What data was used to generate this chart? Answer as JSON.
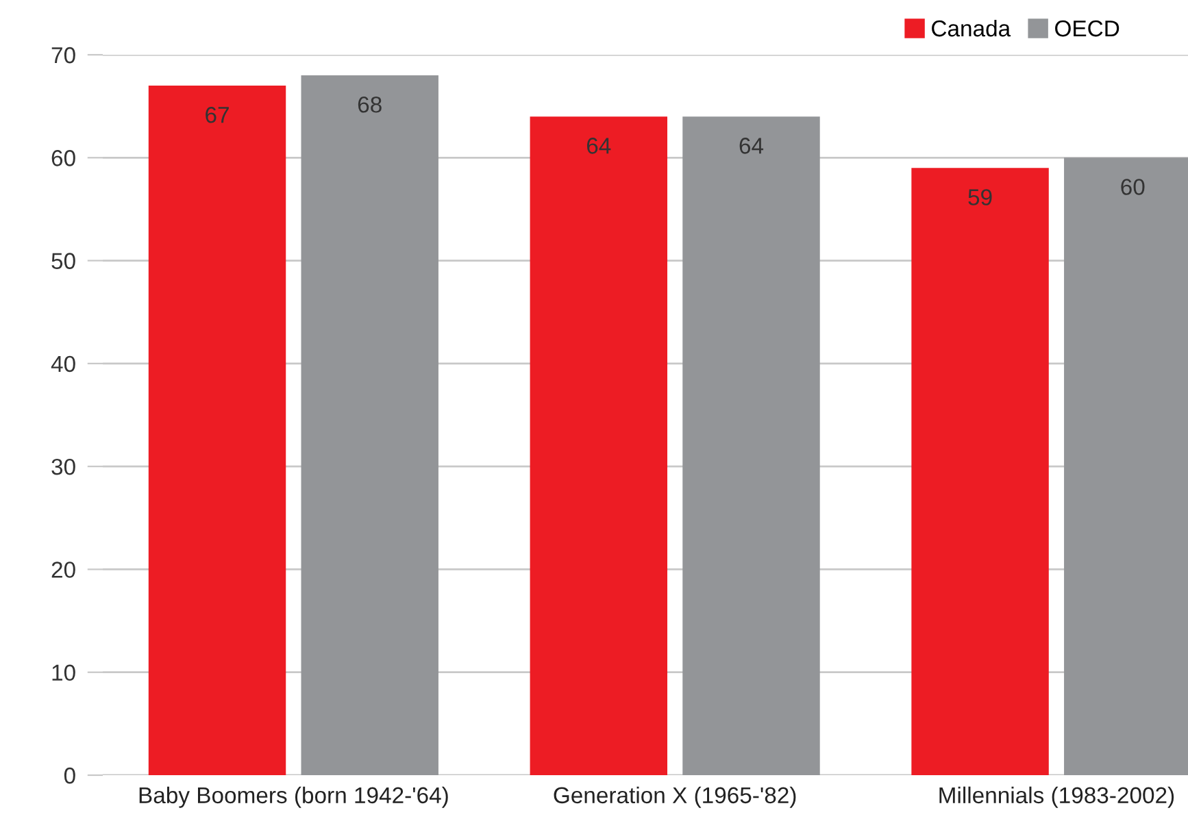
{
  "chart_data": {
    "type": "bar",
    "categories": [
      "Baby Boomers (born 1942-'64)",
      "Generation X (1965-'82)",
      "Millennials (1983-2002)"
    ],
    "series": [
      {
        "name": "Canada",
        "color": "#ed1c24",
        "values": [
          67,
          64,
          59
        ]
      },
      {
        "name": "OECD",
        "color": "#939598",
        "values": [
          68,
          64,
          60
        ]
      }
    ],
    "ylim": [
      0,
      70
    ],
    "yticks": [
      0,
      10,
      20,
      30,
      40,
      50,
      60,
      70
    ],
    "grid": "y",
    "legend": "top right",
    "data_labels": true
  }
}
